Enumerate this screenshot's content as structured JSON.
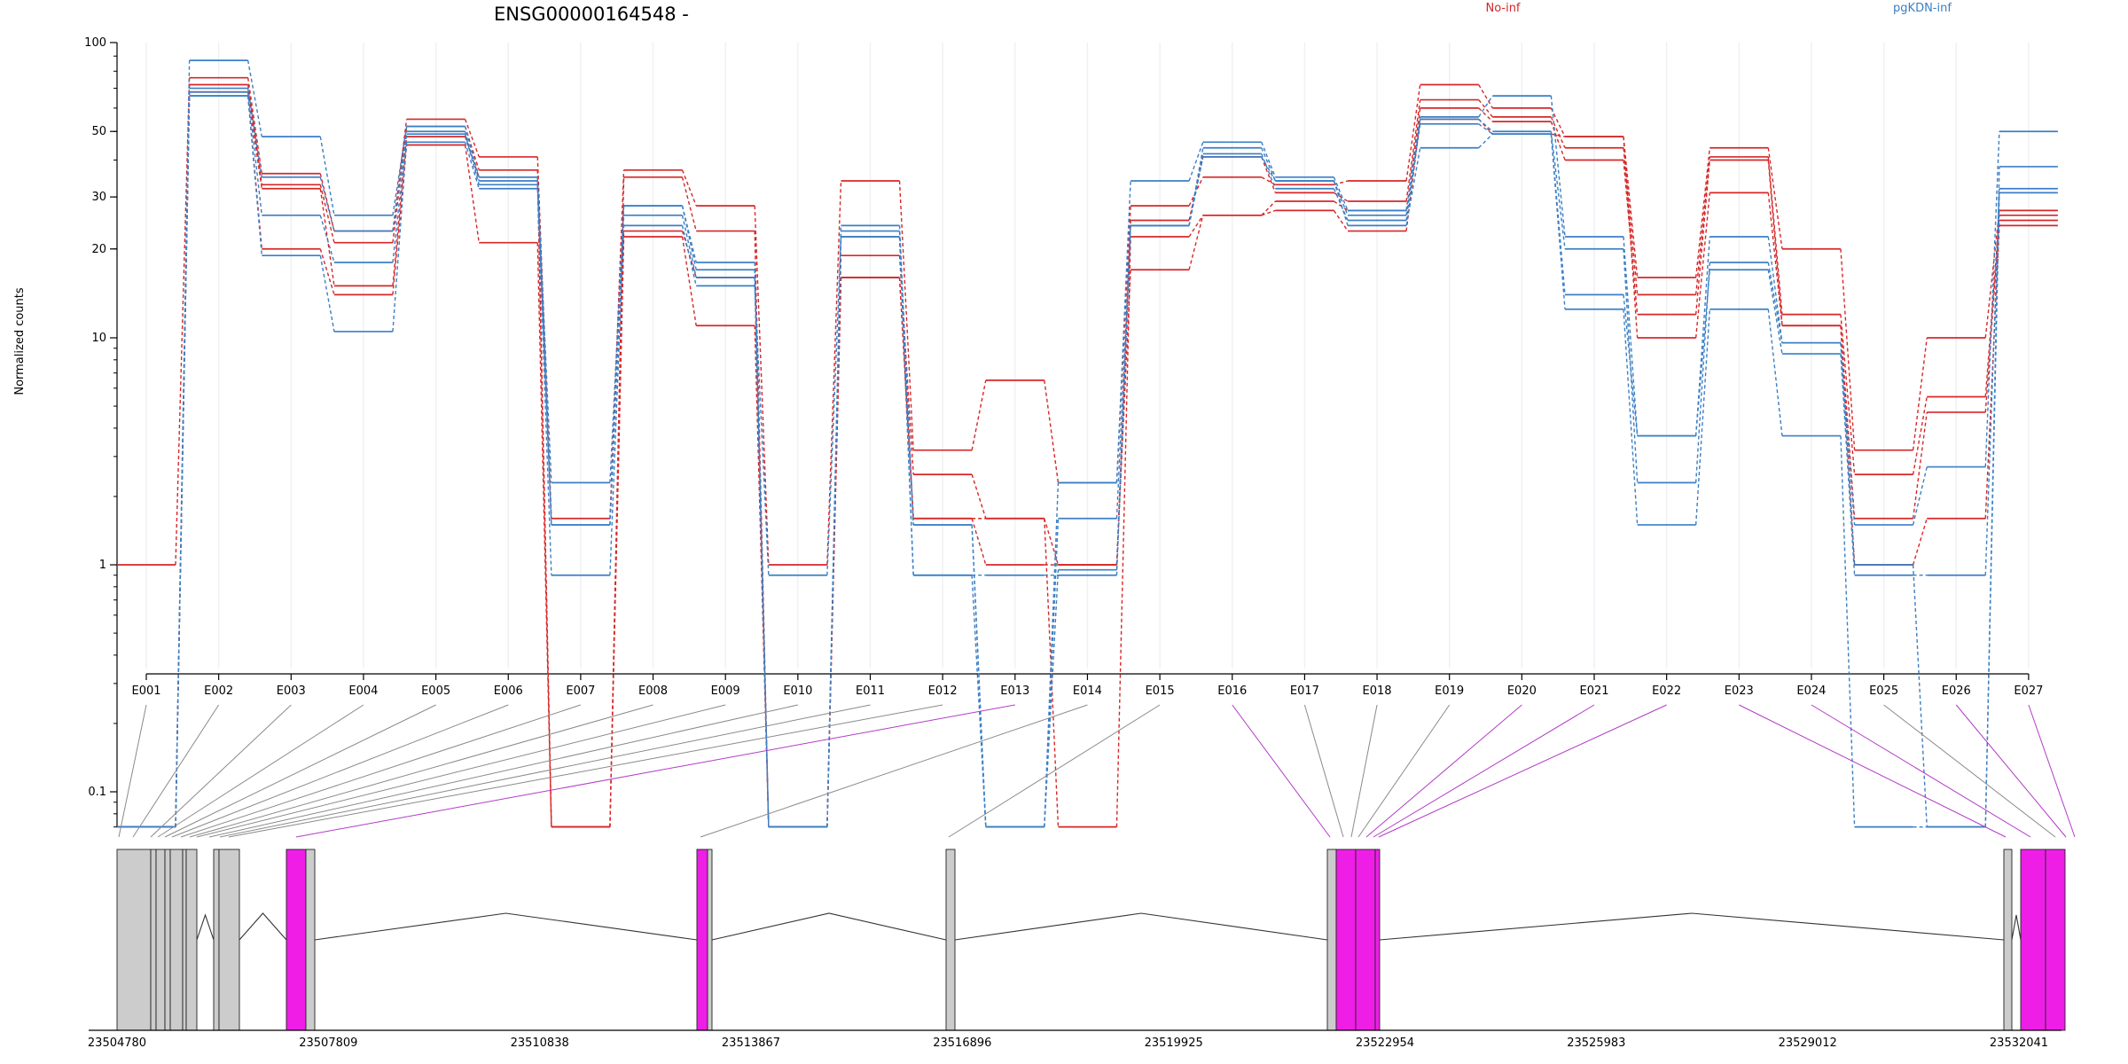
{
  "chart_data": {
    "type": "line",
    "title": "ENSG00000164548 -",
    "ylabel": "Normalized counts",
    "xlabel": "",
    "y_scale": "log",
    "ylim": [
      0.07,
      100
    ],
    "y_ticks": [
      "0.1",
      "1",
      "10",
      "20",
      "30",
      "50",
      "100"
    ],
    "grid": "vertical lines at each exon",
    "legend_placement": "top-right",
    "legend": [
      {
        "label": "No-inf",
        "color": "#d62728"
      },
      {
        "label": "pgKDN-inf",
        "color": "#3b7fc4"
      }
    ],
    "categories": [
      "E001",
      "E002",
      "E003",
      "E004",
      "E005",
      "E006",
      "E007",
      "E008",
      "E009",
      "E010",
      "E011",
      "E012",
      "E013",
      "E014",
      "E015",
      "E016",
      "E017",
      "E018",
      "E019",
      "E020",
      "E021",
      "E022",
      "E023",
      "E024",
      "E025",
      "E026",
      "E027"
    ],
    "series": [
      {
        "group": "No-inf",
        "color": "#d62728",
        "values": [
          1,
          76,
          36,
          23,
          55,
          41,
          1.6,
          37,
          28,
          1,
          34,
          3.2,
          6.5,
          2.3,
          28,
          35,
          33,
          34,
          72,
          60,
          48,
          16,
          44,
          20,
          3.2,
          10,
          27
        ]
      },
      {
        "group": "No-inf",
        "color": "#d62728",
        "values": [
          0.07,
          72,
          33,
          21,
          52,
          37,
          0.07,
          35,
          23,
          0.07,
          19,
          2.5,
          1.6,
          1,
          25,
          41,
          31,
          29,
          64,
          56,
          44,
          14,
          41,
          12,
          2.5,
          5.5,
          26
        ]
      },
      {
        "group": "No-inf",
        "color": "#d62728",
        "values": [
          0.07,
          68,
          32,
          15,
          48,
          35,
          0.07,
          23,
          16,
          0.07,
          16,
          1.6,
          1.6,
          0.07,
          22,
          26,
          29,
          27,
          60,
          54,
          40,
          12,
          40,
          11,
          1.6,
          4.7,
          25
        ]
      },
      {
        "group": "No-inf",
        "color": "#d62728",
        "values": [
          0.07,
          66,
          20,
          14,
          45,
          21,
          0.07,
          22,
          11,
          0.07,
          16,
          1.6,
          1,
          1,
          17,
          26,
          27,
          23,
          55,
          49,
          48,
          10,
          31,
          11,
          1,
          1.6,
          24
        ]
      },
      {
        "group": "pgKDN-inf",
        "color": "#3b7fc4",
        "values": [
          0.07,
          87,
          48,
          26,
          52,
          35,
          2.3,
          28,
          18,
          0.07,
          24,
          1.5,
          0.07,
          2.3,
          34,
          46,
          35,
          27,
          56,
          66,
          22,
          3.7,
          22,
          9.5,
          1.5,
          2.7,
          50
        ]
      },
      {
        "group": "pgKDN-inf",
        "color": "#3b7fc4",
        "values": [
          0.07,
          70,
          35,
          23,
          50,
          34,
          1.5,
          28,
          17,
          0.07,
          23,
          1.5,
          0.07,
          1.6,
          24,
          44,
          34,
          26,
          55,
          50,
          20,
          2.3,
          18,
          9.5,
          1,
          0.07,
          38
        ]
      },
      {
        "group": "pgKDN-inf",
        "color": "#3b7fc4",
        "values": [
          0.07,
          68,
          26,
          18,
          49,
          33,
          1.5,
          26,
          16,
          0.07,
          22,
          0.9,
          0.07,
          0.95,
          24,
          42,
          32,
          25,
          53,
          49,
          14,
          3.7,
          17,
          8.5,
          0.9,
          0.9,
          32
        ]
      },
      {
        "group": "pgKDN-inf",
        "color": "#3b7fc4",
        "values": [
          0.07,
          66,
          19,
          10.5,
          46,
          32,
          0.9,
          24,
          15,
          0.9,
          22,
          0.9,
          0.9,
          0.9,
          24,
          41,
          34,
          24,
          44,
          49,
          12.5,
          1.5,
          12.5,
          3.7,
          0.07,
          0.07,
          31
        ]
      }
    ],
    "gene_model": {
      "genomic_ticks": [
        "23504780",
        "23507809",
        "23510838",
        "23513867",
        "23516896",
        "23519925",
        "23522954",
        "23525983",
        "23529012",
        "23532041"
      ],
      "highlight_color": "#ee1ee6",
      "exon_color": "#cccccc",
      "highlighted_exons": [
        "E013",
        "E016",
        "E020",
        "E021",
        "E022",
        "E023",
        "E024",
        "E026",
        "E027"
      ]
    }
  }
}
